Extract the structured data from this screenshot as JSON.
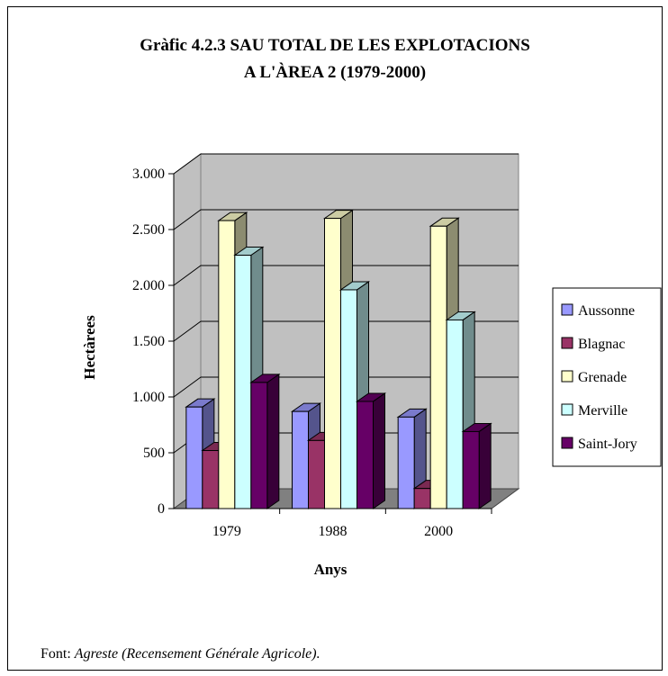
{
  "chart_data": {
    "type": "bar",
    "title_line1": "Gràfic 4.2.3 SAU TOTAL DE LES EXPLOTACIONS",
    "title_line2": "A L'ÀREA 2 (1979-2000)",
    "xlabel": "Anys",
    "ylabel": "Hectàrees",
    "categories": [
      "1979",
      "1988",
      "2000"
    ],
    "ylim": [
      0,
      3000
    ],
    "yticks": [
      0,
      500,
      1000,
      1500,
      2000,
      2500,
      3000
    ],
    "ytick_labels": [
      "0",
      "500",
      "1.000",
      "1.500",
      "2.000",
      "2.500",
      "3.000"
    ],
    "grid": true,
    "legend_position": "right",
    "series": [
      {
        "name": "Aussonne",
        "values": [
          910,
          870,
          820
        ],
        "color": "#9999ff"
      },
      {
        "name": "Blagnac",
        "values": [
          520,
          610,
          180
        ],
        "color": "#993366"
      },
      {
        "name": "Grenade",
        "values": [
          2580,
          2600,
          2530
        ],
        "color": "#ffffcc"
      },
      {
        "name": "Merville",
        "values": [
          2270,
          1960,
          1690
        ],
        "color": "#ccffff"
      },
      {
        "name": "Saint-Jory",
        "values": [
          1130,
          960,
          690
        ],
        "color": "#660066"
      }
    ]
  },
  "source": {
    "prefix": "Font: ",
    "text": "Agreste (Recensement Générale Agricole)."
  }
}
